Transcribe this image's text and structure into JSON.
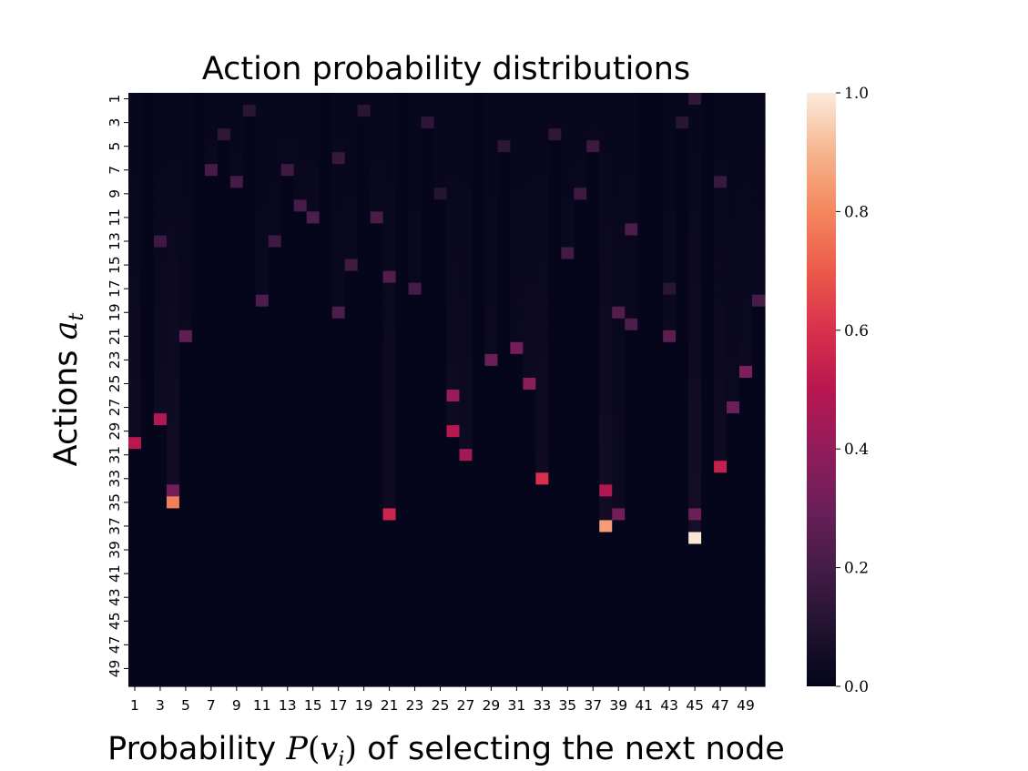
{
  "chart_data": {
    "type": "heatmap",
    "title": "Action probability distributions",
    "xlabel": {
      "prefix": "Probability ",
      "math_fn": "P",
      "math_open": "(",
      "math_var": "v",
      "math_sub": "i",
      "math_close": ")",
      "suffix": " of selecting the next node"
    },
    "ylabel": {
      "prefix": "Actions ",
      "math_var": "a",
      "math_sub": "t"
    },
    "n_rows": 50,
    "n_cols": 50,
    "x_tick_labels": [
      "1",
      "3",
      "5",
      "7",
      "9",
      "11",
      "13",
      "15",
      "17",
      "19",
      "21",
      "23",
      "25",
      "27",
      "29",
      "31",
      "33",
      "35",
      "37",
      "39",
      "41",
      "43",
      "45",
      "47",
      "49"
    ],
    "y_tick_labels": [
      "1",
      "3",
      "5",
      "7",
      "9",
      "11",
      "13",
      "15",
      "17",
      "19",
      "21",
      "23",
      "25",
      "27",
      "29",
      "31",
      "33",
      "35",
      "37",
      "39",
      "41",
      "43",
      "45",
      "47",
      "49"
    ],
    "colorbar": {
      "vmin": 0.0,
      "vmax": 1.0,
      "ticks": [
        "0.0",
        "0.2",
        "0.4",
        "0.6",
        "0.8",
        "1.0"
      ],
      "tick_values": [
        0.0,
        0.2,
        0.4,
        0.6,
        0.8,
        1.0
      ]
    },
    "colormap_stops": [
      {
        "v": 0.0,
        "c": "#03051a"
      },
      {
        "v": 0.1,
        "c": "#221331"
      },
      {
        "v": 0.2,
        "c": "#451c47"
      },
      {
        "v": 0.3,
        "c": "#6b1f59"
      },
      {
        "v": 0.4,
        "c": "#921c5b"
      },
      {
        "v": 0.5,
        "c": "#b8174f"
      },
      {
        "v": 0.6,
        "c": "#d8304c"
      },
      {
        "v": 0.7,
        "c": "#ec5a4a"
      },
      {
        "v": 0.8,
        "c": "#f4875e"
      },
      {
        "v": 0.9,
        "c": "#f6b48e"
      },
      {
        "v": 1.0,
        "c": "#faebdd"
      }
    ],
    "peak_cells": [
      [
        0,
        44,
        0.14
      ],
      [
        1,
        9,
        0.12
      ],
      [
        1,
        18,
        0.12
      ],
      [
        2,
        23,
        0.13
      ],
      [
        2,
        43,
        0.12
      ],
      [
        3,
        33,
        0.14
      ],
      [
        3,
        7,
        0.14
      ],
      [
        4,
        36,
        0.17
      ],
      [
        4,
        29,
        0.13
      ],
      [
        5,
        16,
        0.16
      ],
      [
        6,
        12,
        0.18
      ],
      [
        6,
        6,
        0.2
      ],
      [
        7,
        8,
        0.2
      ],
      [
        7,
        46,
        0.16
      ],
      [
        8,
        24,
        0.11
      ],
      [
        8,
        35,
        0.18
      ],
      [
        9,
        13,
        0.2
      ],
      [
        10,
        19,
        0.21
      ],
      [
        10,
        14,
        0.22
      ],
      [
        11,
        39,
        0.21
      ],
      [
        12,
        11,
        0.18
      ],
      [
        12,
        2,
        0.18
      ],
      [
        13,
        34,
        0.19
      ],
      [
        14,
        17,
        0.19
      ],
      [
        15,
        20,
        0.23
      ],
      [
        16,
        42,
        0.12
      ],
      [
        16,
        22,
        0.2
      ],
      [
        17,
        10,
        0.22
      ],
      [
        17,
        49,
        0.2
      ],
      [
        18,
        16,
        0.22
      ],
      [
        18,
        38,
        0.24
      ],
      [
        19,
        39,
        0.22
      ],
      [
        20,
        42,
        0.26
      ],
      [
        20,
        4,
        0.27
      ],
      [
        21,
        30,
        0.32
      ],
      [
        22,
        28,
        0.3
      ],
      [
        23,
        48,
        0.35
      ],
      [
        24,
        31,
        0.38
      ],
      [
        25,
        25,
        0.42
      ],
      [
        26,
        47,
        0.3
      ],
      [
        27,
        2,
        0.48
      ],
      [
        28,
        25,
        0.5
      ],
      [
        29,
        0,
        0.5
      ],
      [
        30,
        26,
        0.44
      ],
      [
        31,
        46,
        0.54
      ],
      [
        32,
        32,
        0.6
      ],
      [
        33,
        37,
        0.48
      ],
      [
        33,
        3,
        0.32
      ],
      [
        34,
        3,
        0.78
      ],
      [
        35,
        20,
        0.56
      ],
      [
        35,
        38,
        0.32
      ],
      [
        35,
        44,
        0.3
      ],
      [
        36,
        37,
        0.85
      ],
      [
        37,
        44,
        0.99
      ]
    ]
  }
}
